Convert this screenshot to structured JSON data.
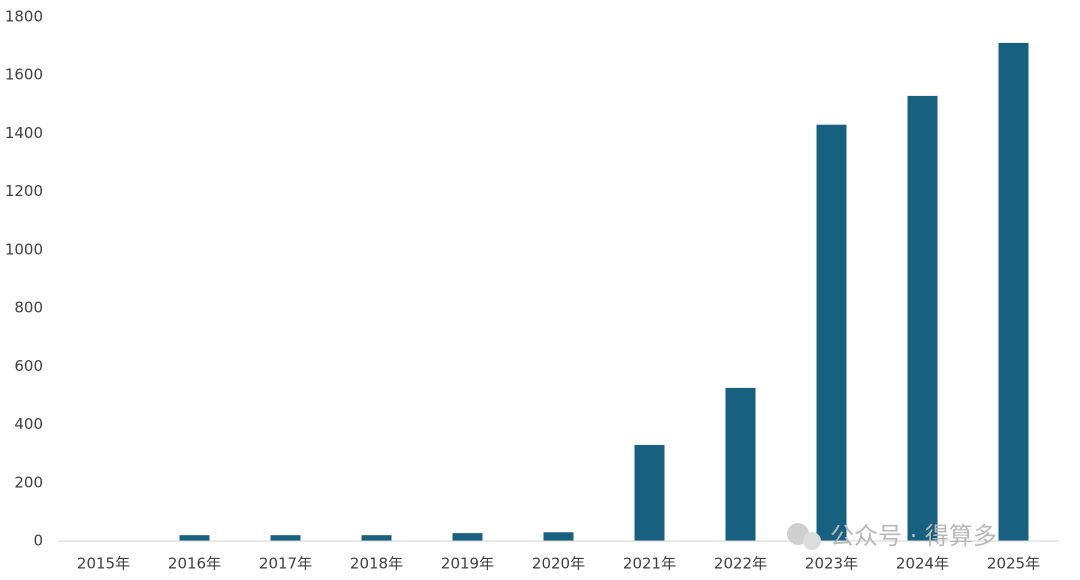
{
  "chart_data": {
    "type": "bar",
    "categories": [
      "2015年",
      "2016年",
      "2017年",
      "2018年",
      "2019年",
      "2020年",
      "2021年",
      "2022年",
      "2023年",
      "2024年",
      "2025年"
    ],
    "values": [
      0,
      20,
      20,
      20,
      27,
      30,
      330,
      526,
      1430,
      1529,
      1711
    ],
    "color": "#17607f",
    "ylim": [
      0,
      1800
    ],
    "yticks": [
      0,
      200,
      400,
      600,
      800,
      1000,
      1200,
      1400,
      1600,
      1800
    ],
    "grid": false,
    "watermark": "公众号 · 得算多"
  }
}
